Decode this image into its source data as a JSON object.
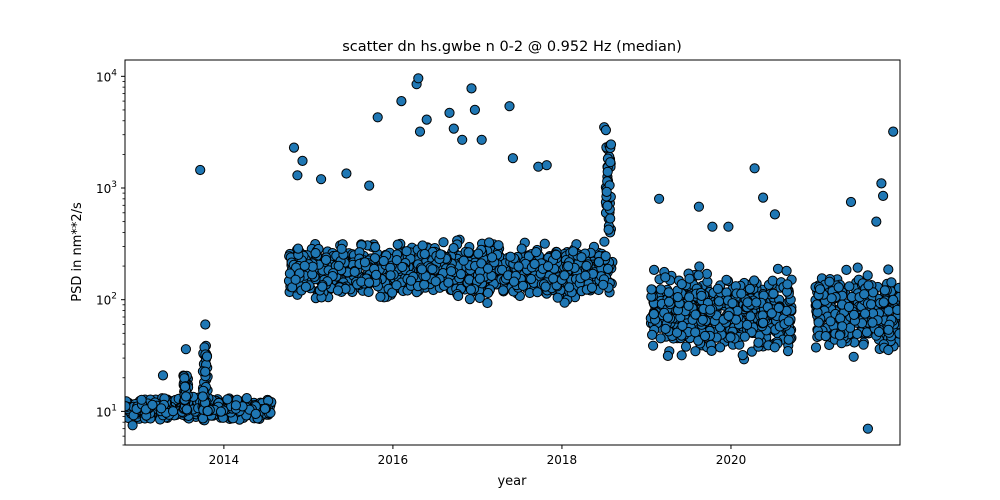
{
  "chart_data": {
    "type": "scatter",
    "title": "scatter dn hs.gwbe n 0-2 @ 0.952 Hz (median)",
    "xlabel": "year",
    "ylabel": "PSD in nm**2/s",
    "xlim": [
      2012.83,
      2022.0
    ],
    "ylim": [
      5,
      14000
    ],
    "yscale": "log",
    "grid": false,
    "marker_color": "#1f77b4",
    "marker_edge_color": "#000000",
    "x_ticks": [
      {
        "value": 2014,
        "label": "2014"
      },
      {
        "value": 2016,
        "label": "2016"
      },
      {
        "value": 2018,
        "label": "2018"
      },
      {
        "value": 2020,
        "label": "2020"
      }
    ],
    "y_ticks": [
      {
        "value": 10,
        "base": "10",
        "exp": "1"
      },
      {
        "value": 100,
        "base": "10",
        "exp": "2"
      },
      {
        "value": 1000,
        "base": "10",
        "exp": "3"
      },
      {
        "value": 10000,
        "base": "10",
        "exp": "4"
      }
    ],
    "clusters": [
      {
        "x_start": 2012.83,
        "x_end": 2014.57,
        "y_min": 8,
        "y_max": 14
      },
      {
        "x_start": 2014.77,
        "x_end": 2018.6,
        "y_min": 85,
        "y_max": 380
      },
      {
        "x_start": 2019.05,
        "x_end": 2020.72,
        "y_min": 25,
        "y_max": 230
      },
      {
        "x_start": 2021.0,
        "x_end": 2022.0,
        "y_min": 25,
        "y_max": 230
      }
    ],
    "spikes": [
      {
        "x": 2013.55,
        "y_min": 10,
        "y_max": 22
      },
      {
        "x": 2013.78,
        "y_min": 10,
        "y_max": 42
      },
      {
        "x": 2018.55,
        "y_min": 400,
        "y_max": 2500
      }
    ],
    "points": [
      {
        "x": 2013.72,
        "y": 1450
      },
      {
        "x": 2013.78,
        "y": 60
      },
      {
        "x": 2013.55,
        "y": 36
      },
      {
        "x": 2013.28,
        "y": 21
      },
      {
        "x": 2012.92,
        "y": 7.5
      },
      {
        "x": 2014.83,
        "y": 2300
      },
      {
        "x": 2014.87,
        "y": 1300
      },
      {
        "x": 2014.93,
        "y": 1750
      },
      {
        "x": 2015.15,
        "y": 1200
      },
      {
        "x": 2015.45,
        "y": 1350
      },
      {
        "x": 2015.72,
        "y": 1050
      },
      {
        "x": 2015.82,
        "y": 4300
      },
      {
        "x": 2016.1,
        "y": 6000
      },
      {
        "x": 2016.28,
        "y": 8500
      },
      {
        "x": 2016.3,
        "y": 9600
      },
      {
        "x": 2016.4,
        "y": 4100
      },
      {
        "x": 2016.32,
        "y": 3200
      },
      {
        "x": 2016.67,
        "y": 4700
      },
      {
        "x": 2016.72,
        "y": 3400
      },
      {
        "x": 2016.82,
        "y": 2700
      },
      {
        "x": 2016.93,
        "y": 7800
      },
      {
        "x": 2016.97,
        "y": 5000
      },
      {
        "x": 2017.05,
        "y": 2700
      },
      {
        "x": 2017.38,
        "y": 5400
      },
      {
        "x": 2017.42,
        "y": 1850
      },
      {
        "x": 2017.72,
        "y": 1550
      },
      {
        "x": 2017.82,
        "y": 1600
      },
      {
        "x": 2018.5,
        "y": 3500
      },
      {
        "x": 2018.52,
        "y": 3300
      },
      {
        "x": 2019.15,
        "y": 800
      },
      {
        "x": 2019.62,
        "y": 680
      },
      {
        "x": 2019.78,
        "y": 450
      },
      {
        "x": 2019.97,
        "y": 450
      },
      {
        "x": 2020.28,
        "y": 1500
      },
      {
        "x": 2020.38,
        "y": 820
      },
      {
        "x": 2020.52,
        "y": 580
      },
      {
        "x": 2021.42,
        "y": 750
      },
      {
        "x": 2021.72,
        "y": 500
      },
      {
        "x": 2021.78,
        "y": 1100
      },
      {
        "x": 2021.8,
        "y": 850
      },
      {
        "x": 2021.92,
        "y": 3200
      },
      {
        "x": 2021.62,
        "y": 7
      }
    ]
  }
}
